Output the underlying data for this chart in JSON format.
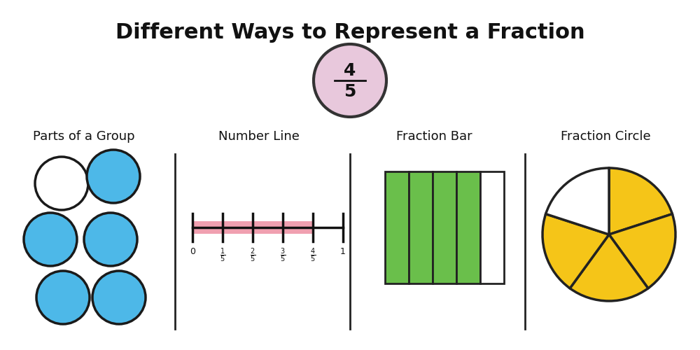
{
  "title": "Different Ways to Represent a Fraction",
  "title_fontsize": 22,
  "background_color": "#ffffff",
  "fraction_numerator": "4",
  "fraction_denominator": "5",
  "fraction_circle_fill": "#e8c8dc",
  "fraction_circle_edge": "#333333",
  "section_labels": [
    "Parts of a Group",
    "Number Line",
    "Fraction Bar",
    "Fraction Circle"
  ],
  "section_label_fontsize": 13,
  "blue_fill": "#4db8e8",
  "blue_edge": "#1a1a1a",
  "white_fill": "#ffffff",
  "pink_fill": "#f0a0b0",
  "green_fill": "#6abf4b",
  "white_bar": "#ffffff",
  "bar_edge": "#222222",
  "yellow_fill": "#f5c518",
  "pie_edge": "#222222",
  "divider_color": "#222222"
}
